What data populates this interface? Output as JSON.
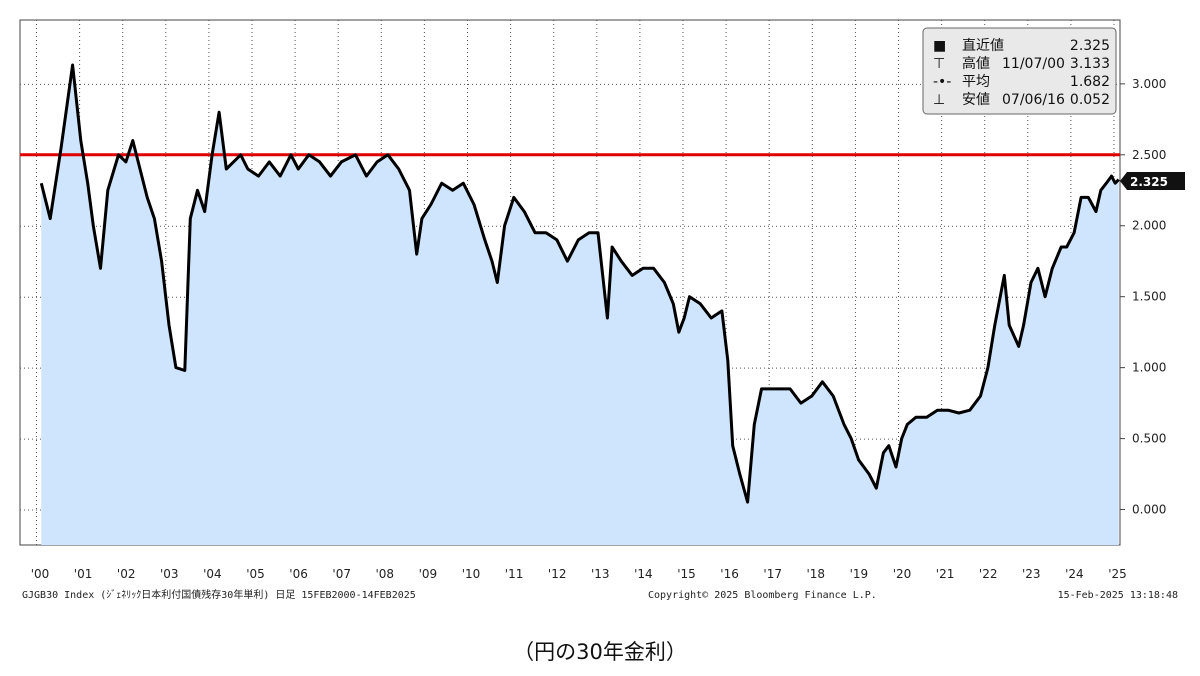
{
  "caption": "（円の30年金利）",
  "chart_data": {
    "type": "area",
    "series": [
      {
        "x": [
          "2000-02-15",
          "2000-05-01",
          "2000-08-01",
          "2000-11-07",
          "2001-01-15",
          "2001-03-15",
          "2001-05-01",
          "2001-07-01",
          "2001-09-01",
          "2001-12-01",
          "2002-02-01",
          "2002-04-01",
          "2002-06-01",
          "2002-08-01",
          "2002-10-01",
          "2002-12-01",
          "2003-02-01",
          "2003-04-01",
          "2003-06-15",
          "2003-08-01",
          "2003-10-01",
          "2003-12-01",
          "2004-02-01",
          "2004-04-01",
          "2004-06-01",
          "2004-08-01",
          "2004-10-01",
          "2004-12-01",
          "2005-03-01",
          "2005-06-01",
          "2005-09-01",
          "2005-12-01",
          "2006-02-01",
          "2006-05-01",
          "2006-08-01",
          "2006-11-01",
          "2007-02-01",
          "2007-06-01",
          "2007-09-01",
          "2007-12-01",
          "2008-03-01",
          "2008-06-01",
          "2008-09-01",
          "2008-11-01",
          "2008-12-15",
          "2009-03-01",
          "2009-06-01",
          "2009-09-01",
          "2009-12-01",
          "2010-03-01",
          "2010-06-01",
          "2010-08-01",
          "2010-09-15",
          "2010-11-15",
          "2011-02-01",
          "2011-05-01",
          "2011-08-01",
          "2011-11-01",
          "2012-02-01",
          "2012-05-01",
          "2012-08-01",
          "2012-11-01",
          "2013-01-15",
          "2013-04-05",
          "2013-05-15",
          "2013-08-01",
          "2013-11-01",
          "2014-02-01",
          "2014-05-01",
          "2014-08-01",
          "2014-10-15",
          "2014-12-01",
          "2015-01-15",
          "2015-03-01",
          "2015-06-01",
          "2015-09-01",
          "2015-12-01",
          "2016-01-20",
          "2016-03-01",
          "2016-05-01",
          "2016-07-06",
          "2016-09-01",
          "2016-11-01",
          "2017-01-15",
          "2017-04-01",
          "2017-07-01",
          "2017-10-01",
          "2018-01-01",
          "2018-04-01",
          "2018-07-01",
          "2018-10-01",
          "2018-12-01",
          "2019-02-01",
          "2019-05-01",
          "2019-07-01",
          "2019-08-30",
          "2019-10-15",
          "2019-12-15",
          "2020-02-01",
          "2020-03-20",
          "2020-06-01",
          "2020-09-01",
          "2020-12-01",
          "2021-03-01",
          "2021-06-01",
          "2021-09-01",
          "2021-12-01",
          "2022-02-01",
          "2022-04-01",
          "2022-06-20",
          "2022-08-01",
          "2022-10-20",
          "2022-12-01",
          "2023-02-01",
          "2023-04-01",
          "2023-06-01",
          "2023-08-01",
          "2023-10-15",
          "2023-12-01",
          "2024-02-01",
          "2024-04-01",
          "2024-06-01",
          "2024-08-05",
          "2024-09-15",
          "2024-11-01",
          "2024-12-15",
          "2025-01-15",
          "2025-02-14"
        ],
        "values": [
          2.3,
          2.05,
          2.55,
          3.133,
          2.6,
          2.3,
          2.0,
          1.7,
          2.25,
          2.5,
          2.45,
          2.6,
          2.4,
          2.2,
          2.05,
          1.75,
          1.3,
          1.0,
          0.98,
          2.05,
          2.25,
          2.1,
          2.5,
          2.8,
          2.4,
          2.45,
          2.5,
          2.4,
          2.35,
          2.45,
          2.35,
          2.5,
          2.4,
          2.5,
          2.45,
          2.35,
          2.45,
          2.5,
          2.35,
          2.45,
          2.5,
          2.4,
          2.25,
          1.8,
          2.05,
          2.15,
          2.3,
          2.25,
          2.3,
          2.15,
          1.9,
          1.75,
          1.6,
          2.0,
          2.2,
          2.1,
          1.95,
          1.95,
          1.9,
          1.75,
          1.9,
          1.95,
          1.95,
          1.35,
          1.85,
          1.75,
          1.65,
          1.7,
          1.7,
          1.6,
          1.45,
          1.25,
          1.35,
          1.5,
          1.45,
          1.35,
          1.4,
          1.05,
          0.45,
          0.25,
          0.052,
          0.6,
          0.85,
          0.85,
          0.85,
          0.85,
          0.75,
          0.8,
          0.9,
          0.8,
          0.6,
          0.5,
          0.35,
          0.25,
          0.15,
          0.4,
          0.45,
          0.3,
          0.5,
          0.6,
          0.65,
          0.65,
          0.7,
          0.7,
          0.68,
          0.7,
          0.8,
          1.0,
          1.3,
          1.65,
          1.3,
          1.15,
          1.3,
          1.6,
          1.7,
          1.5,
          1.7,
          1.85,
          1.85,
          1.95,
          2.2,
          2.2,
          2.1,
          2.25,
          2.3,
          2.35,
          2.3,
          2.325
        ]
      }
    ],
    "x_ticks": [
      "'00",
      "'01",
      "'02",
      "'03",
      "'04",
      "'05",
      "'06",
      "'07",
      "'08",
      "'09",
      "'10",
      "'11",
      "'12",
      "'13",
      "'14",
      "'15",
      "'16",
      "'17",
      "'18",
      "'19",
      "'20",
      "'21",
      "'22",
      "'23",
      "'24",
      "'25"
    ],
    "y_ticks": [
      "0.000",
      "0.500",
      "1.000",
      "1.500",
      "2.000",
      "2.500",
      "3.000"
    ],
    "ylim": [
      -0.25,
      3.45
    ],
    "reference_line": {
      "value": 2.5,
      "color": "#e00000"
    },
    "last_value_label": "2.325",
    "area_color": "#cfe5fd",
    "line_color": "#000000",
    "legend": [
      {
        "marker": "■",
        "label": "直近値",
        "date": "",
        "value": "2.325"
      },
      {
        "marker": "⊤",
        "label": "高値",
        "date": "11/07/00",
        "value": "3.133"
      },
      {
        "marker": "-•-",
        "label": "平均",
        "date": "",
        "value": "1.682"
      },
      {
        "marker": "⊥",
        "label": "安値",
        "date": "07/06/16",
        "value": "0.052"
      }
    ],
    "legend_placement": "top-right",
    "grid": true,
    "footer": {
      "left": "GJGB30 Index (ｼﾞｪﾈﾘｯｸ日本利付国債残存30年単利)  日足 15FEB2000-14FEB2025",
      "center": "Copyright© 2025 Bloomberg Finance L.P.",
      "right": "15-Feb-2025 13:18:48"
    }
  }
}
